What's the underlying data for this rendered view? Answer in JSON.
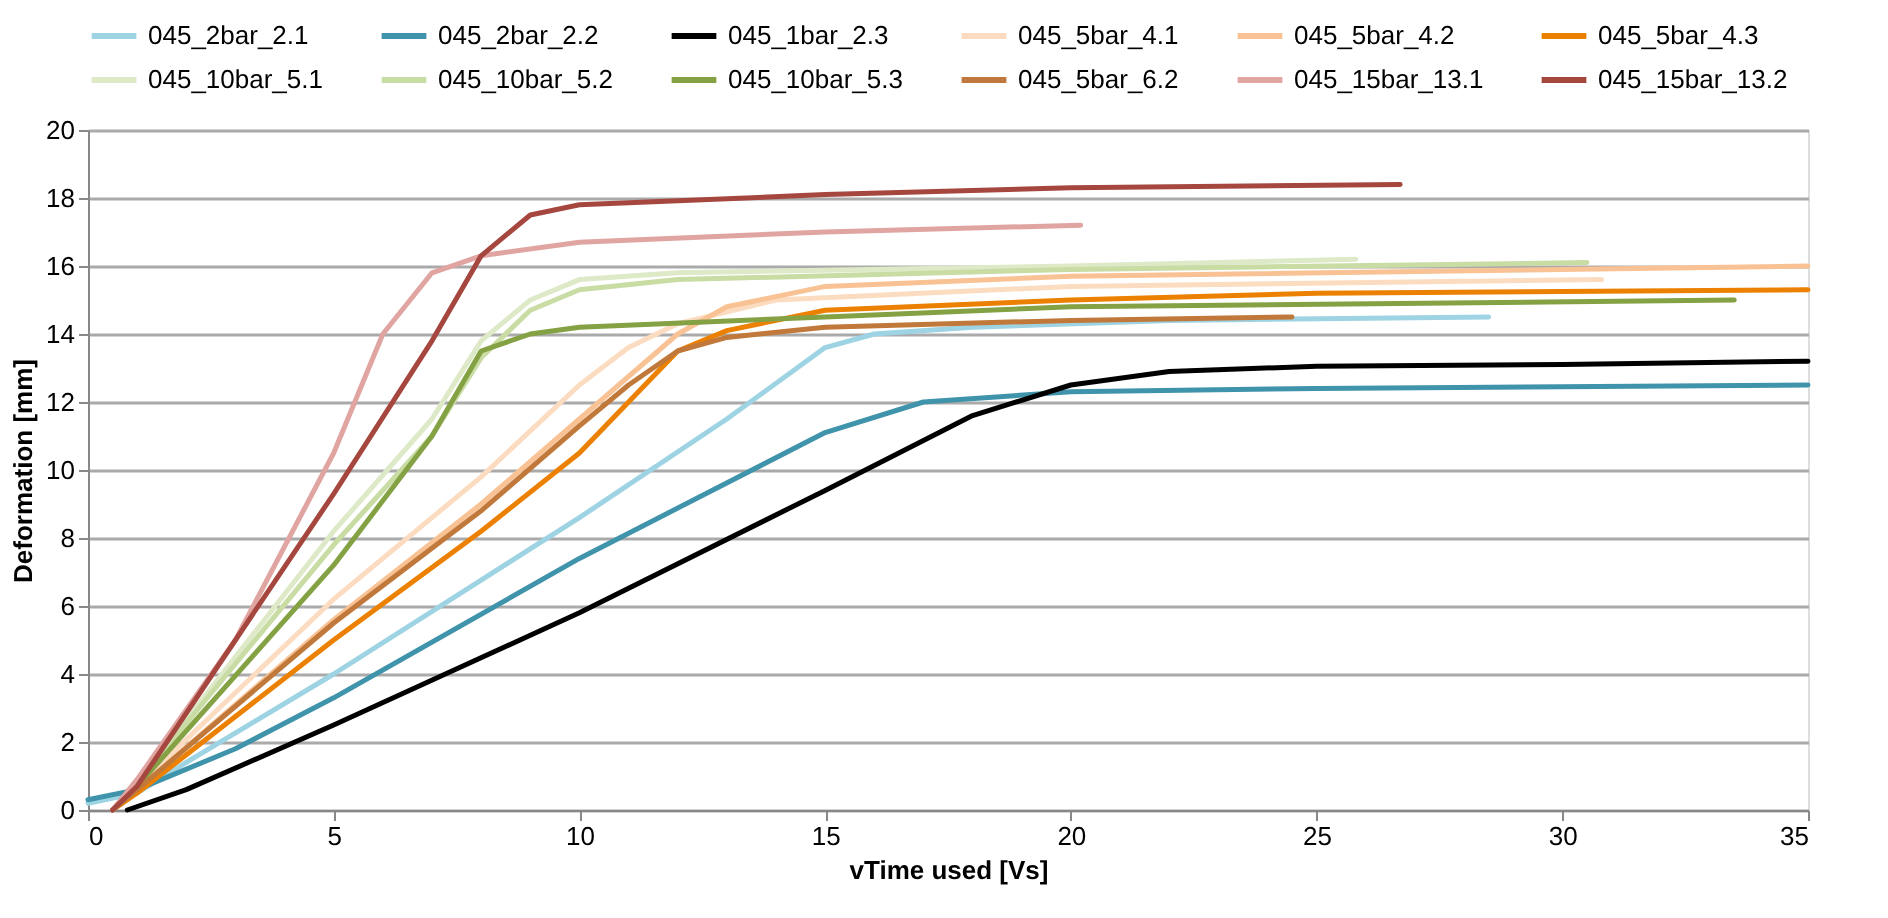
{
  "chart_data": {
    "type": "line",
    "xlabel": "vTime used [Vs]",
    "ylabel": "Deformation [mm]",
    "xlim": [
      0,
      35
    ],
    "xticks": [
      0,
      5,
      10,
      15,
      20,
      25,
      30,
      35
    ],
    "ylim": [
      0,
      20
    ],
    "yticks": [
      0,
      2,
      4,
      6,
      8,
      10,
      12,
      14,
      16,
      18,
      20
    ],
    "grid": "y",
    "legend": "top",
    "marker": "none",
    "line_style": "solid",
    "series": [
      {
        "name": "045_2bar_2.1",
        "color": "#9dd3e3",
        "x": [
          0,
          1,
          2,
          5,
          10,
          13,
          15,
          16,
          18,
          22,
          28.5
        ],
        "values": [
          0.2,
          0.5,
          1.4,
          4,
          8.6,
          11.5,
          13.6,
          14,
          14.2,
          14.4,
          14.5
        ]
      },
      {
        "name": "045_2bar_2.2",
        "color": "#3f93aa",
        "x": [
          0,
          1,
          3,
          5,
          10,
          15,
          17,
          20,
          25,
          35
        ],
        "values": [
          0.3,
          0.6,
          1.8,
          3.3,
          7.4,
          11.1,
          12,
          12.3,
          12.4,
          12.5
        ]
      },
      {
        "name": "045_1bar_2.3",
        "color": "#000000",
        "x": [
          0.8,
          2,
          5,
          10,
          15,
          18,
          20,
          22,
          25,
          30,
          35
        ],
        "values": [
          0,
          0.6,
          2.5,
          5.8,
          9.4,
          11.6,
          12.5,
          12.9,
          13.05,
          13.1,
          13.2
        ]
      },
      {
        "name": "045_5bar_4.1",
        "color": "#fcdcc0",
        "x": [
          0.5,
          1,
          5,
          8,
          10,
          11,
          12,
          14,
          20,
          30.8
        ],
        "values": [
          0,
          0.7,
          6.2,
          9.8,
          12.5,
          13.6,
          14.3,
          15,
          15.4,
          15.6
        ]
      },
      {
        "name": "045_5bar_4.2",
        "color": "#f9c294",
        "x": [
          0.5,
          1,
          5,
          8,
          10,
          12,
          13,
          15,
          20,
          35
        ],
        "values": [
          0,
          0.6,
          5.6,
          9,
          11.5,
          14,
          14.8,
          15.4,
          15.7,
          16
        ]
      },
      {
        "name": "045_5bar_4.3",
        "color": "#ec8000",
        "x": [
          0.5,
          1,
          5,
          8,
          10,
          11,
          12,
          13,
          15,
          20,
          25,
          35
        ],
        "values": [
          0,
          0.5,
          5,
          8.2,
          10.5,
          12,
          13.5,
          14.1,
          14.7,
          15,
          15.2,
          15.3
        ]
      },
      {
        "name": "045_10bar_5.1",
        "color": "#dde9c7",
        "x": [
          0.5,
          1,
          5,
          7,
          8,
          9,
          10,
          12,
          20,
          25.8
        ],
        "values": [
          0,
          0.8,
          8.2,
          11.5,
          13.8,
          15,
          15.6,
          15.8,
          16,
          16.2
        ]
      },
      {
        "name": "045_10bar_5.2",
        "color": "#c8dca4",
        "x": [
          0.5,
          1,
          5,
          7,
          8,
          9,
          10,
          12,
          20,
          30.5
        ],
        "values": [
          0,
          0.8,
          7.8,
          11,
          13.3,
          14.7,
          15.3,
          15.6,
          15.9,
          16.1
        ]
      },
      {
        "name": "045_10bar_5.3",
        "color": "#84a144",
        "x": [
          0.5,
          1,
          5,
          7,
          8,
          9,
          10,
          15,
          20,
          33.5
        ],
        "values": [
          0,
          0.7,
          7.2,
          11,
          13.5,
          14,
          14.2,
          14.5,
          14.8,
          15
        ]
      },
      {
        "name": "045_5bar_6.2",
        "color": "#c0793a",
        "x": [
          0.5,
          1,
          5,
          8,
          10,
          11,
          12,
          13,
          15,
          20,
          24.5
        ],
        "values": [
          0,
          0.6,
          5.5,
          8.8,
          11.3,
          12.5,
          13.5,
          13.9,
          14.2,
          14.4,
          14.5
        ]
      },
      {
        "name": "045_15bar_13.1",
        "color": "#e0a4a1",
        "x": [
          0.5,
          1,
          3,
          5,
          6,
          7,
          8,
          10,
          15,
          20.2
        ],
        "values": [
          0,
          0.9,
          5,
          10.5,
          14,
          15.8,
          16.3,
          16.7,
          17,
          17.2
        ]
      },
      {
        "name": "045_15bar_13.2",
        "color": "#a5473f",
        "x": [
          0.5,
          1,
          5,
          7,
          8,
          9,
          10,
          15,
          20,
          26.7
        ],
        "values": [
          0,
          0.7,
          9.3,
          13.8,
          16.3,
          17.5,
          17.8,
          18.1,
          18.3,
          18.4
        ]
      }
    ]
  }
}
